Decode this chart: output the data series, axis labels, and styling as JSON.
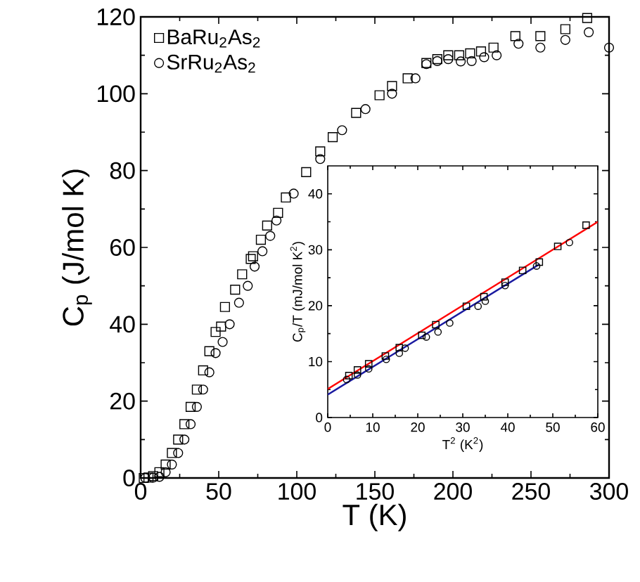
{
  "chart_data": [
    {
      "type": "scatter",
      "xlabel": "T (K)",
      "ylabel": "C$_{p}$ (J/mol K)",
      "xlim": [
        0,
        300
      ],
      "ylim": [
        0,
        120
      ],
      "xticks": [
        0,
        50,
        100,
        150,
        200,
        250,
        300
      ],
      "yticks": [
        0,
        20,
        40,
        60,
        80,
        100,
        120
      ],
      "legend": "top left",
      "series": [
        {
          "name": "BaRu$_{2}$As$_{2}$",
          "color": "#000000",
          "marker": "square",
          "x": [
            2,
            5,
            8,
            12,
            16,
            20,
            24,
            28,
            32,
            36,
            40,
            44,
            48,
            51.5,
            54,
            60.5,
            65,
            70.5,
            72,
            77,
            81,
            88,
            93,
            106,
            115,
            123,
            138,
            153,
            161,
            171,
            183,
            190,
            197,
            204,
            211,
            218,
            226,
            240,
            256,
            272,
            286
          ],
          "values": [
            0,
            0.1,
            0.5,
            1.5,
            3.5,
            6.5,
            10,
            14,
            18.5,
            23,
            28,
            33,
            38,
            39.4,
            44.5,
            49,
            53,
            57,
            57.7,
            62,
            65.7,
            69,
            73,
            79.6,
            85,
            88.7,
            95,
            99.6,
            102,
            104,
            108,
            109,
            110,
            110,
            110.5,
            111,
            112,
            115,
            115,
            116.8,
            119.7
          ]
        },
        {
          "name": "SrRu$_{2}$As$_{2}$",
          "color": "#000000",
          "marker": "circle",
          "x": [
            3,
            8,
            12,
            16,
            20,
            24,
            28,
            32,
            36,
            40,
            44,
            48,
            52.5,
            57,
            63,
            68.6,
            73,
            78,
            83,
            87,
            98,
            115,
            129,
            144,
            161,
            176,
            183,
            190,
            197,
            205,
            212,
            220,
            228,
            242,
            256,
            272,
            287,
            300
          ],
          "values": [
            0,
            0.1,
            0.3,
            1.5,
            3.5,
            6.5,
            10,
            14,
            18.5,
            23,
            27.5,
            32.5,
            35.4,
            40,
            45.6,
            50,
            55,
            59,
            63,
            67,
            74,
            83,
            90.5,
            96,
            100,
            104,
            107.7,
            108.5,
            109,
            108.4,
            108.5,
            109.5,
            110,
            113,
            112,
            114,
            116,
            112
          ]
        }
      ]
    },
    {
      "type": "scatter",
      "xlabel": "T$^{2}$ (K$^{2}$)",
      "ylabel": "C$_{p}$/T (mJ/mol K$^{2}$)",
      "xlim": [
        0,
        60
      ],
      "ylim": [
        0,
        45
      ],
      "xticks": [
        0,
        10,
        20,
        30,
        40,
        50,
        60
      ],
      "yticks": [
        0,
        10,
        20,
        30,
        40
      ],
      "series": [
        {
          "color": "#000000",
          "marker": "square",
          "x": [
            4.7,
            6.6,
            9.1,
            12.8,
            15.9,
            20.9,
            24,
            30.8,
            34.7,
            39.4,
            43.3,
            47,
            51.1,
            57.4
          ],
          "values": [
            7.5,
            8.5,
            9.6,
            11,
            12.5,
            14.7,
            16.6,
            19.9,
            21.6,
            24.2,
            26.3,
            27.8,
            30.6,
            34.4
          ]
        },
        {
          "color": "#000000",
          "marker": "circle",
          "x": [
            4.2,
            6.6,
            9.1,
            13,
            15.9,
            17.2,
            21.9,
            24.5,
            27.1,
            33.4,
            35,
            39.4,
            46.4,
            53.7
          ],
          "values": [
            6.8,
            7.6,
            8.7,
            10.4,
            11.5,
            12.4,
            14.4,
            15.3,
            16.9,
            19.9,
            20.8,
            23.6,
            27.1,
            31.3
          ]
        },
        {
          "type": "line",
          "color": "#ff0000",
          "x": [
            0,
            60
          ],
          "values": [
            5.1,
            35
          ]
        },
        {
          "type": "line",
          "color": "#1a1aa0",
          "x": [
            0,
            47
          ],
          "values": [
            4.1,
            27.4
          ]
        }
      ]
    }
  ]
}
